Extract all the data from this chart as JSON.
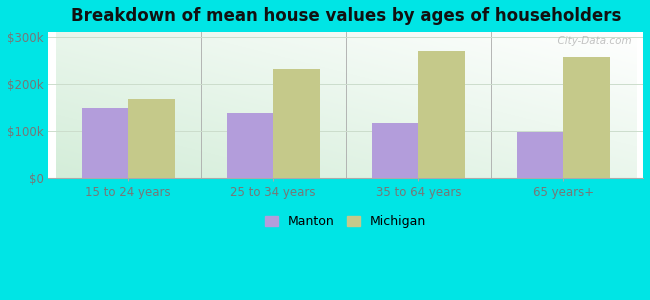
{
  "title": "Breakdown of mean house values by ages of householders",
  "categories": [
    "15 to 24 years",
    "25 to 34 years",
    "35 to 64 years",
    "65 years+"
  ],
  "manton_values": [
    148000,
    138000,
    118000,
    98000
  ],
  "michigan_values": [
    168000,
    232000,
    270000,
    258000
  ],
  "manton_color": "#b39ddb",
  "michigan_color": "#c5c98a",
  "background_color": "#00e5e5",
  "ylim": [
    0,
    310000
  ],
  "yticks": [
    0,
    100000,
    200000,
    300000
  ],
  "ytick_labels": [
    "$0",
    "$100k",
    "$200k",
    "$300k"
  ],
  "bar_width": 0.32,
  "legend_manton": "Manton",
  "legend_michigan": "Michigan",
  "title_fontsize": 12,
  "tick_fontsize": 8.5,
  "legend_fontsize": 9,
  "grid_color": "#ccddcc",
  "spine_color": "#aaaaaa"
}
